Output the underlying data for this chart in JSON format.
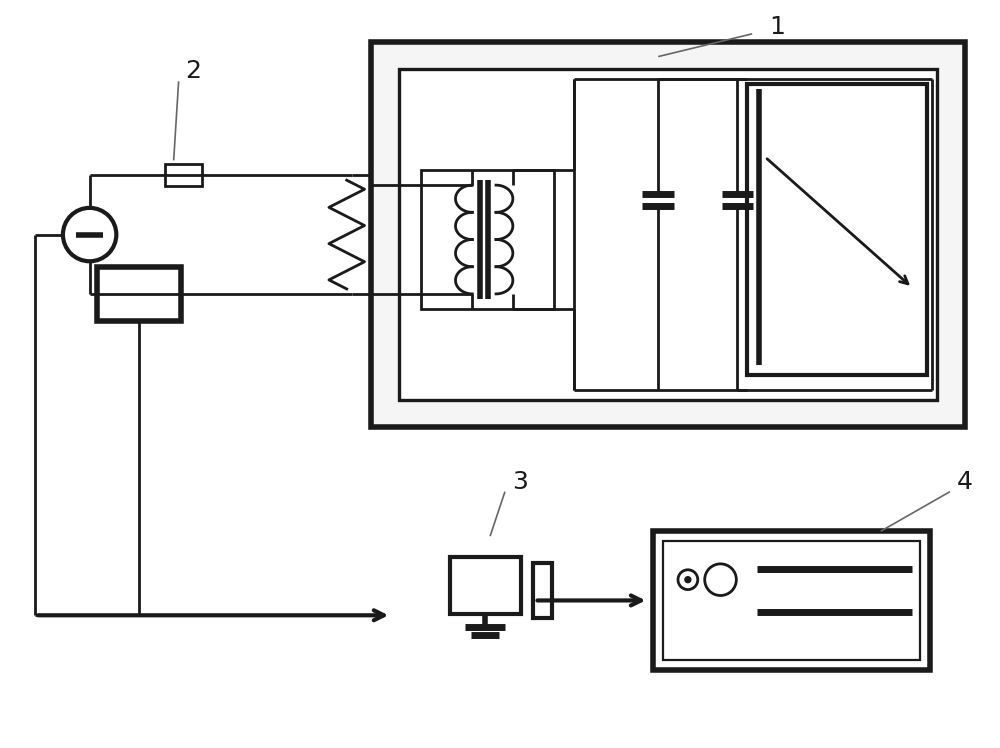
{
  "bg_color": "#ffffff",
  "line_color": "#1a1a1a",
  "lw": 2.0,
  "fig_width": 10.0,
  "fig_height": 7.48,
  "label1": "1",
  "label2": "2",
  "label3": "3",
  "label4": "4"
}
